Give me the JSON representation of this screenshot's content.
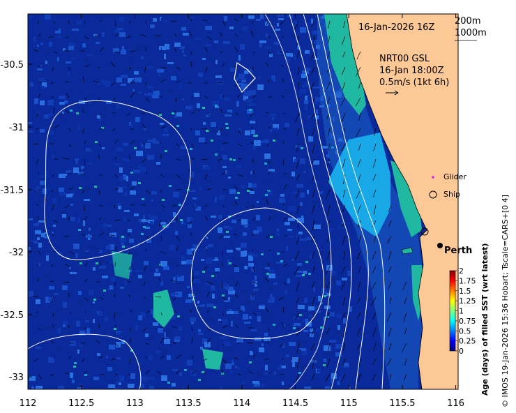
{
  "title": {
    "date": "16-Jan-2026 16Z"
  },
  "legend_depths": [
    "200m",
    "1000m"
  ],
  "current_info": {
    "product": "NRT00 GSL",
    "time": "16-Jan 18:00Z",
    "scale": "0.5m/s (1kt 6h)"
  },
  "markers": {
    "glider": "Glider",
    "ship": "Ship"
  },
  "city": "Perth",
  "axes": {
    "x_ticks": [
      "112",
      "112.5",
      "113",
      "113.5",
      "114",
      "114.5",
      "115",
      "115.5",
      "116"
    ],
    "y_ticks": [
      "-30.5",
      "-31",
      "-31.5",
      "-32",
      "-32.5",
      "-33"
    ]
  },
  "colorbar": {
    "label": "Age (days) of filled SST (wrt latest)",
    "ticks": [
      "2",
      "1.75",
      "1.5",
      "1.25",
      "1",
      "0.75",
      "0.5",
      "0.25",
      "0"
    ],
    "colors": [
      "#00007f",
      "#0000ff",
      "#0080ff",
      "#00ffff",
      "#80ff80",
      "#ffff00",
      "#ff8000",
      "#ff0000",
      "#7f0000"
    ]
  },
  "credit": "© IMOS 19-Jan-2026 15:36 Hobart; Tscale=CARS+[0 4]",
  "colors": {
    "land": "#fcc896",
    "ocean_base": "#0a2a9c",
    "teal": "#20b8a0",
    "cyan": "#18a8e8"
  }
}
